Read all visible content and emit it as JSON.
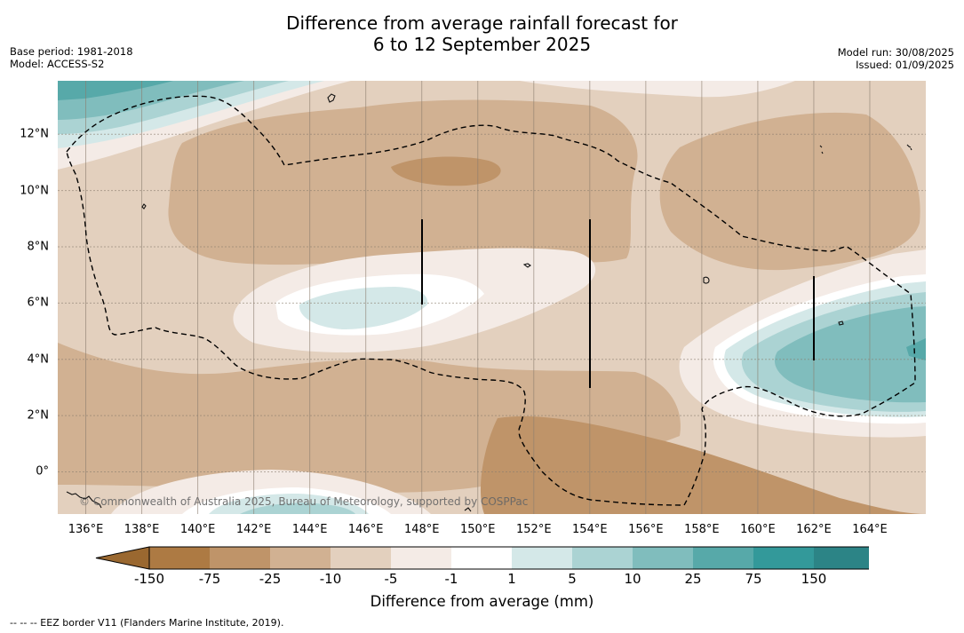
{
  "title": {
    "line1": "Difference from average rainfall forecast for",
    "line2": "6 to 12 September 2025"
  },
  "meta_left": {
    "base_period": "Base period: 1981-2018",
    "model": "Model: ACCESS-S2"
  },
  "meta_right": {
    "model_run": "Model run: 30/08/2025",
    "issued": "Issued: 01/09/2025"
  },
  "map": {
    "x_ticks": [
      "136°E",
      "138°E",
      "140°E",
      "142°E",
      "144°E",
      "146°E",
      "148°E",
      "150°E",
      "152°E",
      "154°E",
      "156°E",
      "158°E",
      "160°E",
      "162°E",
      "164°E"
    ],
    "y_ticks": [
      "12°N",
      "10°N",
      "8°N",
      "6°N",
      "4°N",
      "2°N",
      "0°"
    ],
    "lon_range": [
      135,
      166
    ],
    "lat_range": [
      -1.5,
      13.9
    ],
    "copyright": "© Commonwealth of Australia 2025, Bureau of Meteorology, supported by COSPPac"
  },
  "colorbar": {
    "title": "Difference from average (mm)",
    "ticks": [
      "-150",
      "-75",
      "-25",
      "-10",
      "-5",
      "-1",
      "1",
      "5",
      "10",
      "25",
      "75",
      "150"
    ],
    "colors": [
      "#ad7a43",
      "#bf9469",
      "#d1b192",
      "#e3d0be",
      "#f4ebe6",
      "#ffffff",
      "#d4e8e8",
      "#abd3d3",
      "#80bdbd",
      "#57a9a9",
      "#33999a",
      "#2c8486"
    ],
    "low_color": "#9a6830",
    "high_color": "#2a7b7c"
  },
  "footnote": "--  --  -- EEZ border V11 (Flanders Marine Institute, 2019)."
}
